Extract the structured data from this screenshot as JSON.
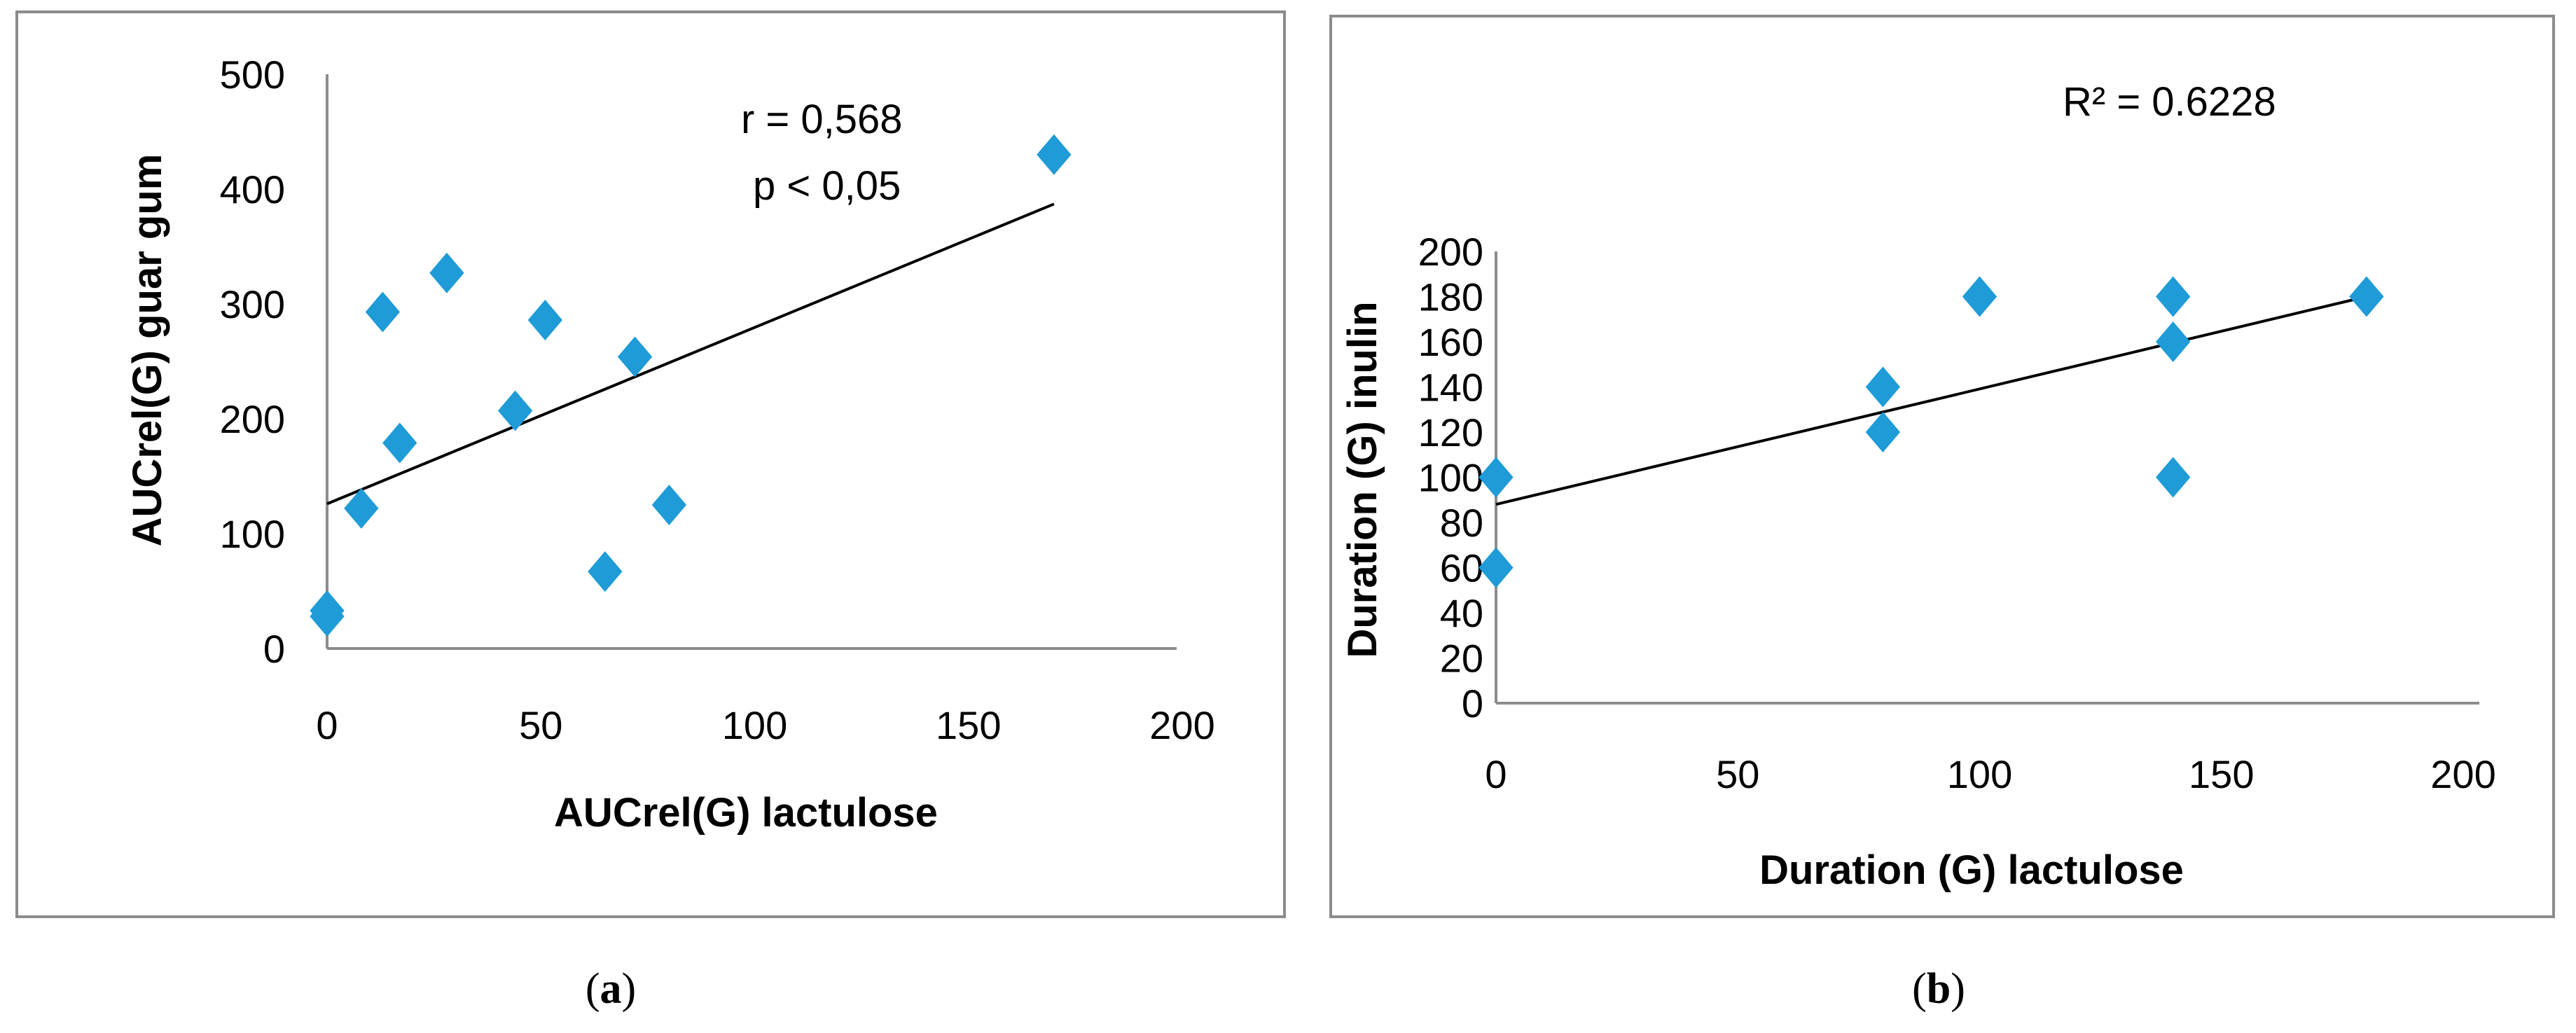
{
  "chart_data": [
    {
      "type": "scatter",
      "panel_label": "a",
      "caption_open": "(",
      "caption_close": ")",
      "xlabel": "AUCrel(G) lactulose",
      "ylabel": "AUCrel(G) guar gum",
      "xlim": [
        0,
        200
      ],
      "ylim": [
        0,
        500
      ],
      "xticks": [
        "0",
        "50",
        "100",
        "150",
        "200"
      ],
      "yticks": [
        "0",
        "100",
        "200",
        "300",
        "400",
        "500"
      ],
      "annotations": [
        "r = 0,568",
        "p  < 0,05"
      ],
      "marker_color": "#1F9BD7",
      "points": [
        [
          0,
          33
        ],
        [
          0,
          28
        ],
        [
          8,
          122
        ],
        [
          13,
          293
        ],
        [
          17,
          179
        ],
        [
          28,
          327
        ],
        [
          44,
          207
        ],
        [
          51,
          286
        ],
        [
          72,
          254
        ],
        [
          65,
          67
        ],
        [
          80,
          125
        ],
        [
          170,
          430
        ]
      ],
      "trendline": [
        [
          0,
          126
        ],
        [
          170,
          387
        ]
      ]
    },
    {
      "type": "scatter",
      "panel_label": "b",
      "caption_open": "(",
      "caption_close": ")",
      "xlabel": "Duration (G) lactulose",
      "ylabel": "Duration (G) inulin",
      "xlim": [
        0,
        200
      ],
      "ylim": [
        0,
        200
      ],
      "xticks": [
        "0",
        "50",
        "100",
        "150",
        "200"
      ],
      "yticks": [
        "0",
        "20",
        "40",
        "60",
        "80",
        "100",
        "120",
        "140",
        "160",
        "180",
        "200"
      ],
      "annotations": [
        "R² = 0.6228"
      ],
      "marker_color": "#1F9BD7",
      "points": [
        [
          0,
          100
        ],
        [
          0,
          60
        ],
        [
          80,
          140
        ],
        [
          80,
          120
        ],
        [
          100,
          180
        ],
        [
          140,
          180
        ],
        [
          140,
          160
        ],
        [
          140,
          100
        ],
        [
          180,
          180
        ]
      ],
      "trendline": [
        [
          0,
          88
        ],
        [
          180,
          180
        ]
      ]
    }
  ]
}
